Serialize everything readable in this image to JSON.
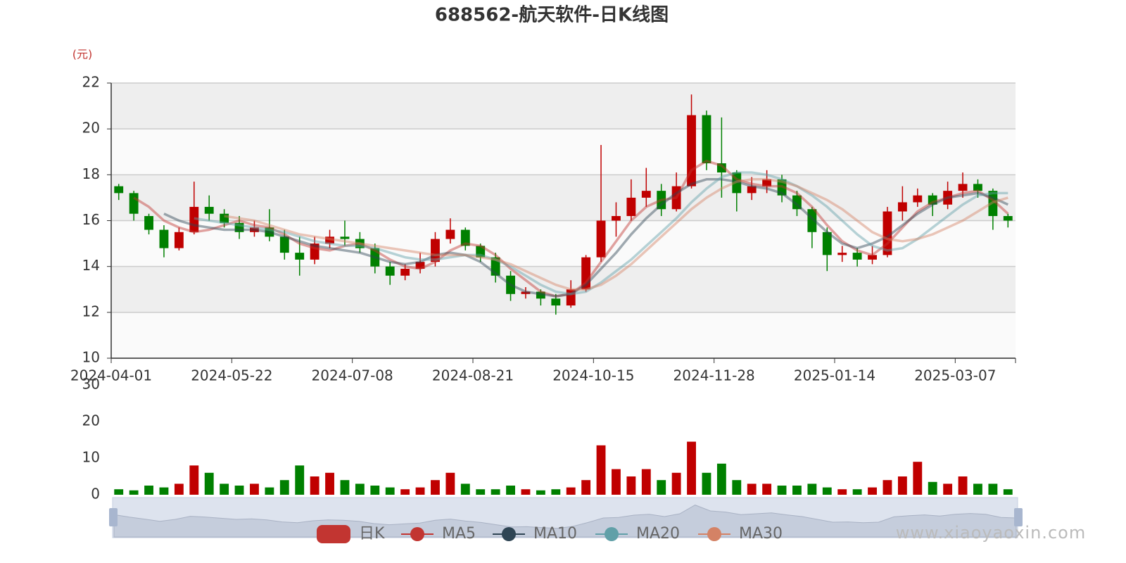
{
  "chart_data": [
    {
      "type": "candlestick",
      "title": "688562-航天软件-日K线图",
      "ylabel": "(元)",
      "categories": [
        "2024-04-01",
        null,
        null,
        null,
        null,
        null,
        null,
        null,
        "2024-05-22",
        null,
        null,
        null,
        null,
        null,
        null,
        null,
        "2024-07-08",
        null,
        null,
        null,
        null,
        null,
        null,
        null,
        "2024-08-21",
        null,
        null,
        null,
        null,
        null,
        null,
        null,
        "2024-10-15",
        null,
        null,
        null,
        null,
        null,
        null,
        null,
        "2024-11-28",
        null,
        null,
        null,
        null,
        null,
        null,
        null,
        "2025-01-14",
        null,
        null,
        null,
        null,
        null,
        null,
        null,
        "2025-03-07",
        null,
        null,
        null
      ],
      "ylim": [
        10,
        22
      ],
      "yticks": [
        10,
        12,
        14,
        16,
        18,
        20,
        22
      ],
      "split_area": [
        "#fafafa",
        "#eeeeee"
      ],
      "series": [
        {
          "name": "日K",
          "type": "candlestick",
          "color": "#c23531",
          "up_color": "#c00000",
          "down_color": "#008000",
          "open": [
            17.5,
            17.2,
            16.2,
            15.6,
            14.8,
            15.5,
            16.6,
            16.3,
            15.9,
            15.5,
            15.7,
            15.3,
            14.6,
            14.3,
            15.0,
            15.3,
            15.2,
            14.8,
            14.0,
            13.6,
            13.9,
            14.2,
            15.2,
            15.6,
            14.9,
            14.4,
            13.6,
            12.8,
            12.9,
            12.6,
            12.3,
            13.0,
            14.4,
            16.0,
            16.2,
            17.0,
            17.3,
            16.5,
            17.5,
            20.6,
            18.5,
            18.1,
            17.2,
            17.5,
            17.8,
            17.1,
            16.5,
            15.5,
            14.5,
            14.6,
            14.3,
            14.5,
            16.4,
            16.8,
            17.1,
            16.7,
            17.3,
            17.6,
            17.3,
            16.2
          ],
          "close": [
            17.2,
            16.3,
            15.6,
            14.8,
            15.5,
            16.6,
            16.3,
            15.9,
            15.5,
            15.7,
            15.3,
            14.6,
            14.3,
            15.0,
            15.3,
            15.2,
            14.8,
            14.0,
            13.6,
            13.9,
            14.2,
            15.2,
            15.6,
            14.9,
            14.4,
            13.6,
            12.8,
            12.9,
            12.6,
            12.3,
            13.0,
            14.4,
            16.0,
            16.2,
            17.0,
            17.3,
            16.5,
            17.5,
            20.6,
            18.5,
            18.1,
            17.2,
            17.5,
            17.8,
            17.1,
            16.5,
            15.5,
            14.5,
            14.6,
            14.3,
            14.5,
            16.4,
            16.8,
            17.1,
            16.7,
            17.3,
            17.6,
            17.3,
            16.2,
            16.0
          ],
          "low": [
            16.9,
            16.0,
            15.4,
            14.4,
            14.7,
            15.4,
            16.0,
            15.7,
            15.2,
            15.3,
            15.1,
            14.3,
            13.6,
            14.1,
            14.8,
            14.9,
            14.6,
            13.7,
            13.2,
            13.4,
            13.7,
            14.0,
            15.0,
            14.7,
            14.2,
            13.3,
            12.5,
            12.6,
            12.3,
            11.9,
            12.2,
            12.9,
            14.2,
            15.3,
            16.0,
            16.6,
            16.2,
            16.4,
            17.4,
            18.2,
            17.0,
            16.4,
            16.9,
            17.2,
            16.8,
            16.2,
            14.8,
            13.8,
            14.2,
            14.0,
            14.1,
            14.4,
            16.0,
            16.6,
            16.2,
            16.5,
            17.0,
            17.0,
            15.6,
            15.7
          ],
          "high": [
            17.6,
            17.3,
            16.3,
            15.8,
            15.7,
            17.7,
            17.1,
            16.5,
            16.2,
            16.0,
            16.5,
            15.6,
            15.3,
            15.3,
            15.6,
            16.0,
            15.5,
            15.0,
            14.2,
            14.1,
            14.6,
            15.5,
            16.1,
            15.7,
            15.0,
            14.6,
            13.8,
            13.1,
            13.0,
            12.8,
            13.4,
            14.5,
            19.3,
            16.8,
            17.8,
            18.3,
            17.6,
            18.1,
            21.5,
            20.8,
            20.5,
            18.2,
            17.9,
            18.2,
            18.0,
            17.3,
            16.6,
            15.7,
            14.9,
            14.8,
            14.9,
            16.6,
            17.5,
            17.4,
            17.2,
            17.7,
            18.1,
            17.8,
            17.4,
            16.3
          ]
        },
        {
          "name": "MA5",
          "type": "line",
          "color": "#c23531",
          "values": [
            null,
            17.0,
            16.6,
            16.0,
            15.7,
            15.5,
            15.6,
            15.8,
            16.0,
            15.8,
            15.7,
            15.4,
            15.0,
            14.8,
            14.7,
            14.9,
            15.0,
            14.7,
            14.3,
            14.0,
            13.9,
            14.2,
            14.7,
            15.0,
            14.9,
            14.5,
            13.9,
            13.4,
            12.9,
            12.7,
            12.8,
            13.3,
            14.2,
            15.1,
            16.0,
            16.6,
            16.9,
            17.0,
            18.2,
            18.6,
            18.4,
            17.8,
            17.6,
            17.5,
            17.5,
            17.2,
            16.6,
            15.8,
            15.1,
            14.7,
            14.5,
            15.0,
            15.7,
            16.4,
            16.8,
            17.0,
            17.2,
            17.3,
            16.9,
            16.3
          ]
        },
        {
          "name": "MA10",
          "type": "line",
          "color": "#2f4554",
          "values": [
            null,
            null,
            null,
            16.3,
            16.0,
            15.8,
            15.7,
            15.6,
            15.6,
            15.6,
            15.5,
            15.3,
            15.1,
            14.9,
            14.8,
            14.7,
            14.6,
            14.4,
            14.2,
            14.1,
            14.2,
            14.5,
            14.6,
            14.5,
            14.2,
            13.7,
            13.2,
            12.9,
            12.8,
            12.7,
            12.8,
            13.2,
            13.9,
            14.6,
            15.4,
            16.1,
            16.7,
            17.2,
            17.6,
            17.8,
            17.8,
            17.7,
            17.5,
            17.4,
            17.2,
            16.7,
            16.1,
            15.5,
            15.0,
            14.8,
            15.0,
            15.3,
            15.8,
            16.3,
            16.7,
            17.0,
            17.1,
            17.2,
            17.0,
            16.7
          ]
        },
        {
          "name": "MA20",
          "type": "line",
          "color": "#61a0a8",
          "values": [
            null,
            null,
            null,
            null,
            null,
            16.1,
            16.0,
            15.9,
            15.8,
            15.7,
            15.6,
            15.5,
            15.3,
            15.1,
            15.0,
            14.9,
            14.9,
            14.8,
            14.6,
            14.4,
            14.3,
            14.3,
            14.4,
            14.5,
            14.5,
            14.3,
            14.0,
            13.6,
            13.2,
            12.9,
            12.8,
            12.9,
            13.3,
            13.8,
            14.3,
            14.9,
            15.5,
            16.1,
            16.8,
            17.4,
            17.9,
            18.1,
            18.1,
            18.0,
            17.8,
            17.5,
            17.1,
            16.6,
            16.0,
            15.4,
            14.9,
            14.7,
            14.8,
            15.2,
            15.7,
            16.2,
            16.7,
            17.1,
            17.2,
            17.2
          ]
        },
        {
          "name": "MA30",
          "type": "line",
          "color": "#d48265",
          "values": [
            null,
            null,
            null,
            null,
            null,
            null,
            null,
            16.2,
            16.1,
            16.0,
            15.8,
            15.6,
            15.4,
            15.3,
            15.2,
            15.1,
            15.0,
            14.9,
            14.8,
            14.7,
            14.6,
            14.5,
            14.5,
            14.5,
            14.4,
            14.3,
            14.1,
            13.8,
            13.5,
            13.2,
            13.0,
            13.0,
            13.2,
            13.6,
            14.1,
            14.7,
            15.3,
            15.9,
            16.5,
            17.0,
            17.4,
            17.7,
            17.8,
            17.8,
            17.7,
            17.5,
            17.2,
            16.9,
            16.5,
            16.0,
            15.5,
            15.2,
            15.1,
            15.2,
            15.4,
            15.7,
            16.0,
            16.4,
            16.8,
            17.0
          ]
        }
      ]
    },
    {
      "type": "bar",
      "ylim": [
        0,
        30
      ],
      "yticks": [
        0,
        10,
        20,
        30
      ],
      "up_color": "#c00000",
      "down_color": "#008000",
      "values": [
        1.5,
        1.2,
        2.5,
        2,
        3,
        8,
        6,
        3,
        2.5,
        3,
        2,
        4,
        8,
        5,
        6,
        4,
        3,
        2.5,
        2,
        1.5,
        2,
        4,
        6,
        3,
        1.5,
        1.5,
        2.5,
        1.5,
        1.2,
        1.5,
        2,
        4,
        13.5,
        7,
        5,
        7,
        4,
        6,
        14.5,
        6,
        8.5,
        4,
        3,
        3,
        2.5,
        2.5,
        3,
        2,
        1.5,
        1.5,
        2,
        4,
        5,
        9,
        3.5,
        3,
        5,
        3,
        3,
        1.5
      ]
    }
  ],
  "watermark": "www.xiaoyaoxin.com"
}
